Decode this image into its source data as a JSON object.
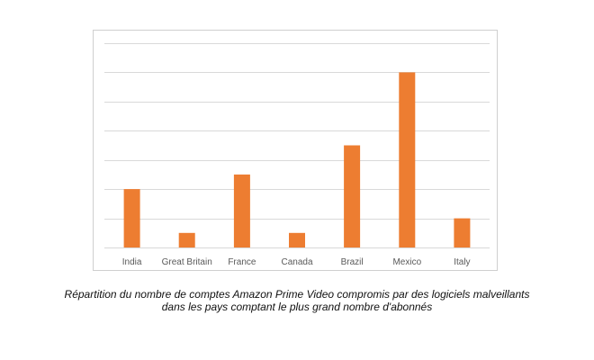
{
  "caption": {
    "line1": "Répartition du nombre de comptes Amazon Prime Video compromis par des logiciels malveillants",
    "line2": "dans les pays comptant le plus grand nombre d'abonnés"
  },
  "chart_data": {
    "type": "bar",
    "title": "",
    "xlabel": "",
    "ylabel": "",
    "categories": [
      "India",
      "Great Britain",
      "France",
      "Canada",
      "Brazil",
      "Mexico",
      "Italy"
    ],
    "values": [
      4,
      1,
      5,
      1,
      7,
      12,
      2
    ],
    "ylim": [
      0,
      14
    ],
    "grid": true,
    "y_tick_labels_shown": false,
    "bar_color": "#ED7D31",
    "grid_color": "#D9D9D9"
  }
}
